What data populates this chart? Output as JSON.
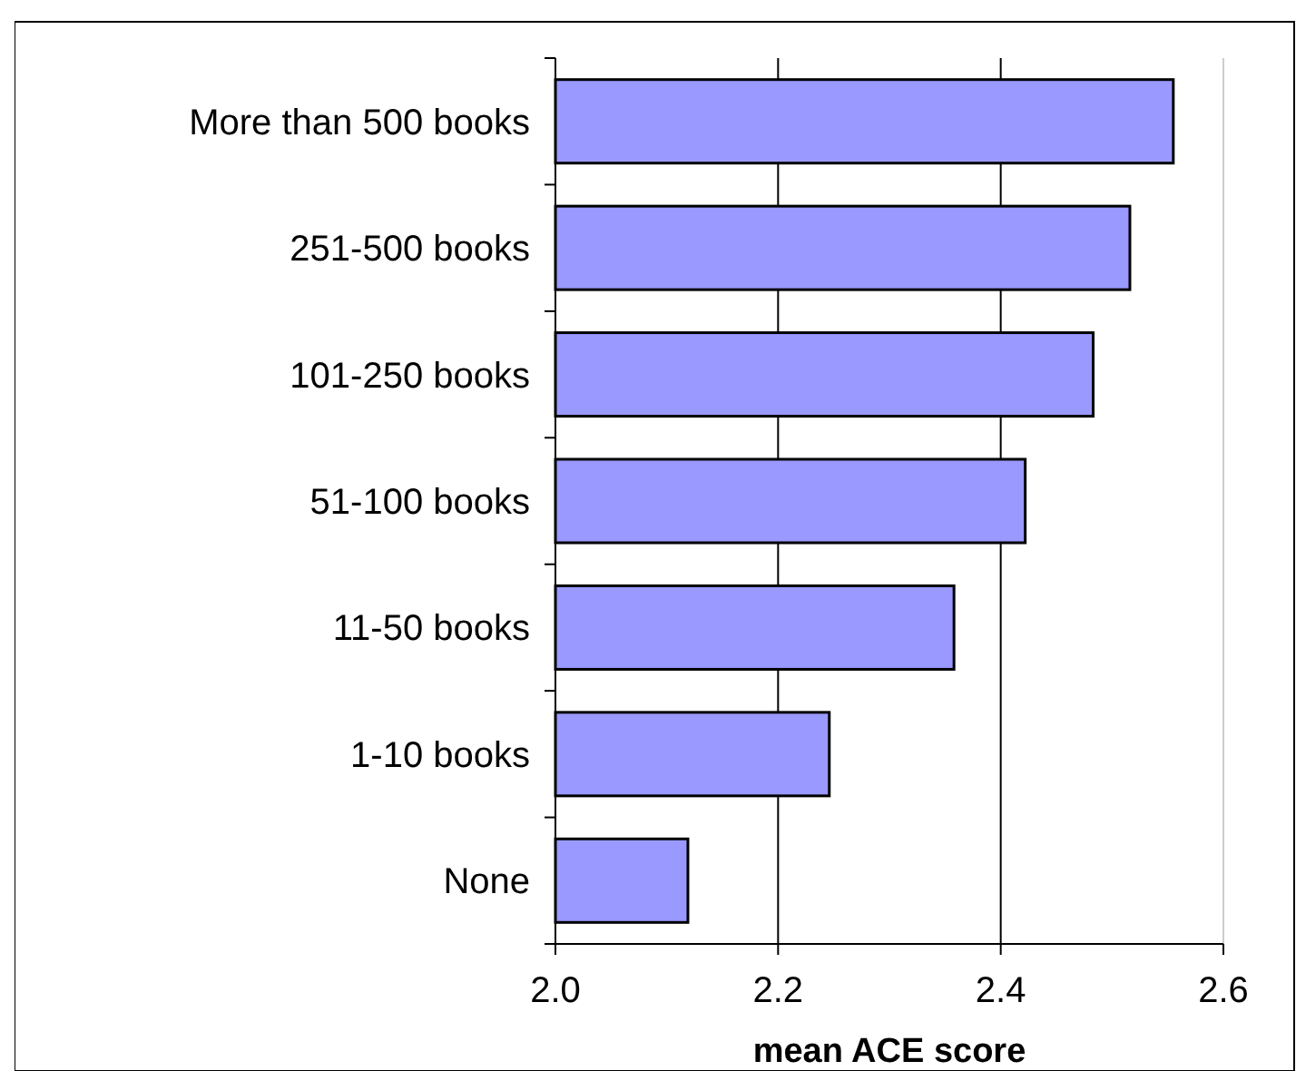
{
  "chart_data": {
    "type": "bar",
    "orientation": "horizontal",
    "xlabel": "mean ACE score",
    "categories": [
      "More than 500 books",
      "251-500 books",
      "101-250 books",
      "51-100 books",
      "11-50 books",
      "1-10 books",
      "None"
    ],
    "values": [
      2.555,
      2.516,
      2.483,
      2.422,
      2.358,
      2.246,
      2.119
    ],
    "color": "#9999ff",
    "xlim": [
      2.0,
      2.6
    ],
    "xticks": [
      {
        "value": 2.0,
        "label": "2.0"
      },
      {
        "value": 2.2,
        "label": "2.2"
      },
      {
        "value": 2.4,
        "label": "2.4"
      },
      {
        "value": 2.6,
        "label": "2.6"
      }
    ],
    "grid": "x"
  }
}
